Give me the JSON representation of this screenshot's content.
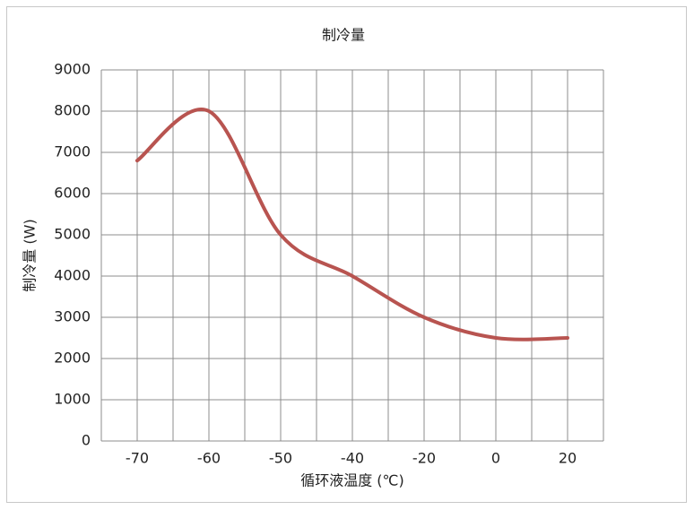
{
  "chart_data": {
    "type": "line",
    "title": "制冷量",
    "x_label": "循环液温度 (℃)",
    "y_label": "制冷量 (W)",
    "categories": [
      "-70",
      "-60",
      "-50",
      "-40",
      "-20",
      "0",
      "20"
    ],
    "series": [
      {
        "name": "制冷量",
        "color": "#b85450",
        "values": [
          6800,
          8000,
          5000,
          4000,
          3000,
          2500,
          2500
        ]
      }
    ],
    "ylim": [
      0,
      9000
    ],
    "yticks": [
      0,
      1000,
      2000,
      3000,
      4000,
      5000,
      6000,
      7000,
      8000,
      9000
    ],
    "grid": true,
    "smooth": true
  }
}
